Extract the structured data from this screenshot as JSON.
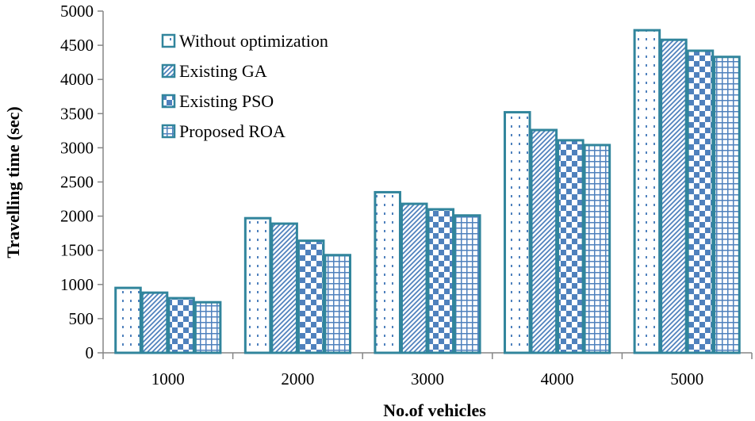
{
  "chart_data": {
    "type": "bar",
    "title": "",
    "xlabel": "No.of vehicles",
    "ylabel": "Travelling time (sec)",
    "categories": [
      "1000",
      "2000",
      "3000",
      "4000",
      "5000"
    ],
    "ylim": [
      0,
      5000
    ],
    "yticks": [
      0,
      500,
      1000,
      1500,
      2000,
      2500,
      3000,
      3500,
      4000,
      4500,
      5000
    ],
    "legend_position": "top-left",
    "grid": false,
    "series": [
      {
        "name": "Without optimization",
        "pattern": "dots",
        "values": [
          950,
          1970,
          2350,
          3520,
          4720
        ]
      },
      {
        "name": "Existing GA",
        "pattern": "diagonal",
        "values": [
          880,
          1890,
          2180,
          3260,
          4580
        ]
      },
      {
        "name": "Existing PSO",
        "pattern": "checker",
        "values": [
          800,
          1640,
          2100,
          3110,
          4420
        ]
      },
      {
        "name": "Proposed ROA",
        "pattern": "grid",
        "values": [
          740,
          1430,
          2010,
          3040,
          4330
        ]
      }
    ],
    "colors": {
      "border": "#31859c",
      "fill": "#4f81bd",
      "axis": "#868686"
    }
  }
}
